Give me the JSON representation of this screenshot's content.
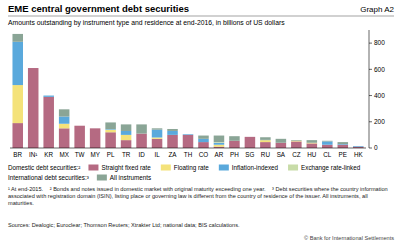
{
  "chart_data": {
    "type": "bar",
    "stacked": true,
    "grid": false,
    "title": "EME central government debt securities",
    "graph_number": "Graph A2",
    "subtitle": "Amounts outstanding by instrument type and residence at end-2016, in billions of US dollars",
    "categories": [
      "BR",
      "IN¹",
      "KR",
      "MX",
      "TW",
      "MY",
      "PL",
      "TR",
      "ID",
      "IL",
      "ZA",
      "TH",
      "CO",
      "AR",
      "PH",
      "SG",
      "RU",
      "SA",
      "CZ",
      "HU",
      "CL",
      "PE",
      "HK"
    ],
    "series": [
      {
        "name": "Straight fixed rate",
        "color": "#b56a82",
        "values": [
          190,
          610,
          390,
          150,
          170,
          150,
          120,
          60,
          110,
          70,
          100,
          100,
          45,
          10,
          55,
          85,
          45,
          40,
          50,
          35,
          25,
          25,
          10
        ]
      },
      {
        "name": "Floating rate",
        "color": "#f4e27a",
        "values": [
          290,
          0,
          0,
          35,
          0,
          0,
          20,
          40,
          0,
          10,
          0,
          0,
          0,
          15,
          0,
          0,
          15,
          0,
          5,
          5,
          0,
          0,
          0
        ]
      },
      {
        "name": "Inflation-indexed",
        "color": "#5aa9dc",
        "values": [
          330,
          0,
          10,
          55,
          0,
          0,
          5,
          30,
          0,
          60,
          30,
          5,
          25,
          15,
          0,
          0,
          2,
          0,
          0,
          0,
          25,
          5,
          5
        ]
      },
      {
        "name": "Exchange rate-linked",
        "color": "#c8dca8",
        "values": [
          0,
          0,
          0,
          0,
          0,
          0,
          0,
          0,
          0,
          0,
          0,
          0,
          0,
          5,
          0,
          0,
          0,
          0,
          0,
          0,
          0,
          0,
          0
        ]
      },
      {
        "name": "All instruments",
        "color": "#8aa596",
        "values": [
          60,
          0,
          0,
          55,
          0,
          0,
          50,
          50,
          70,
          10,
          15,
          0,
          25,
          50,
          35,
          0,
          20,
          30,
          5,
          20,
          5,
          15,
          0
        ]
      }
    ],
    "legend_headings": [
      "Domestic debt securities:²",
      "International debt securities:³"
    ],
    "ylim": [
      0,
      900
    ],
    "yticks": [
      0,
      200,
      400,
      600,
      800
    ],
    "footnotes": [
      "¹ At end-2015.",
      "² Bonds and notes issued in domestic market with original maturity exceeding one year.",
      "³ Debt securities where the country information associated with registration domain (ISIN), listing place or governing law is different from the country of residence of the issuer. All instruments, all maturities."
    ],
    "source": "Sources: Dealogic; Euroclear; Thomson Reuters; Xtrakter Ltd; national data; BIS calculations.",
    "copyright": "© Bank for International Settlements"
  }
}
